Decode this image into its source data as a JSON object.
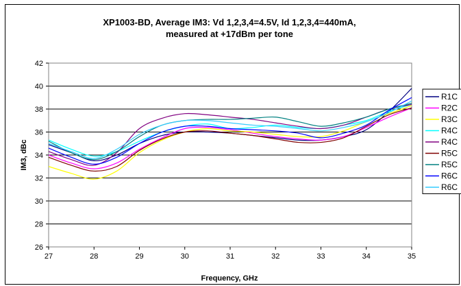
{
  "chart_data": {
    "type": "line",
    "title_lines": [
      "XP1003-BD, Average IM3: Vd 1,2,3,4=4.5V, Id 1,2,3,4=440mA,",
      "measured at +17dBm per tone"
    ],
    "xlabel": "Frequency, GHz",
    "ylabel": "IM3, dBc",
    "xlim": [
      27,
      35
    ],
    "ylim": [
      26,
      42
    ],
    "xticks": [
      "27",
      "28",
      "29",
      "30",
      "31",
      "32",
      "33",
      "34",
      "35"
    ],
    "yticks": [
      "26",
      "28",
      "30",
      "32",
      "34",
      "36",
      "38",
      "40",
      "42"
    ],
    "grid": "horizontal",
    "legend_position": "right",
    "x": [
      27,
      27.5,
      28,
      28.5,
      29,
      29.5,
      30,
      30.5,
      31,
      31.5,
      32,
      32.5,
      33,
      33.5,
      34,
      34.5,
      35
    ],
    "series": [
      {
        "name": "R1C",
        "color": "#000080",
        "values": [
          34.9,
          34.2,
          33.5,
          34.0,
          35.0,
          35.7,
          36.0,
          36.0,
          35.9,
          35.7,
          35.5,
          35.3,
          35.3,
          35.6,
          36.2,
          37.8,
          39.8
        ]
      },
      {
        "name": "R2C",
        "color": "#ff00ff",
        "values": [
          34.0,
          33.3,
          32.8,
          33.3,
          34.5,
          35.5,
          36.3,
          36.4,
          36.2,
          35.9,
          35.6,
          35.4,
          35.3,
          35.6,
          36.4,
          37.3,
          38.1
        ]
      },
      {
        "name": "R3C",
        "color": "#ffff00",
        "values": [
          33.0,
          32.4,
          31.9,
          32.6,
          34.2,
          35.3,
          36.0,
          36.3,
          36.1,
          36.0,
          35.8,
          35.6,
          35.6,
          36.1,
          36.9,
          37.6,
          38.3
        ]
      },
      {
        "name": "R4C",
        "color": "#00ffff",
        "values": [
          35.3,
          34.5,
          33.9,
          34.3,
          35.2,
          36.0,
          36.5,
          36.7,
          36.3,
          36.4,
          36.6,
          36.4,
          36.3,
          36.6,
          37.0,
          37.8,
          38.4
        ]
      },
      {
        "name": "R4C",
        "color": "#800080",
        "values": [
          34.3,
          33.6,
          33.1,
          34.2,
          36.3,
          37.2,
          37.6,
          37.5,
          37.3,
          37.1,
          36.8,
          36.5,
          36.3,
          36.6,
          37.3,
          38.0,
          38.4
        ]
      },
      {
        "name": "R5C",
        "color": "#800000",
        "values": [
          33.8,
          33.1,
          32.6,
          33.0,
          34.4,
          35.4,
          36.0,
          36.1,
          35.9,
          35.7,
          35.4,
          35.1,
          35.1,
          35.5,
          36.5,
          37.5,
          38.1
        ]
      },
      {
        "name": "R5C",
        "color": "#008080",
        "values": [
          35.2,
          34.2,
          33.6,
          34.3,
          35.6,
          36.6,
          37.0,
          37.1,
          37.1,
          37.2,
          37.3,
          36.9,
          36.5,
          36.8,
          37.3,
          38.0,
          38.5
        ]
      },
      {
        "name": "R6C",
        "color": "#0000ff",
        "values": [
          34.6,
          33.8,
          33.2,
          33.8,
          35.0,
          36.0,
          36.5,
          36.5,
          36.3,
          36.2,
          36.1,
          35.9,
          35.5,
          35.9,
          36.6,
          37.9,
          39.0
        ]
      },
      {
        "name": "R6C",
        "color": "#33ccff",
        "values": [
          35.0,
          34.3,
          33.7,
          34.5,
          35.8,
          36.6,
          37.0,
          37.0,
          36.8,
          36.6,
          36.5,
          36.3,
          36.1,
          36.4,
          36.9,
          37.7,
          38.7
        ]
      }
    ]
  }
}
